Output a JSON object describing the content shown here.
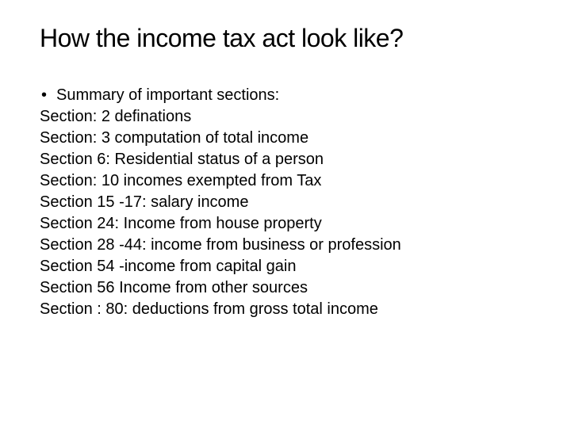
{
  "title": "How the income tax act look like?",
  "bullet": "•",
  "bullet_text": "Summary of important sections:",
  "sections": [
    "Section: 2 definations",
    "Section: 3 computation of total income",
    "Section 6: Residential status of a person",
    "Section: 10 incomes exempted from Tax",
    "Section 15 -17: salary income",
    "Section 24: Income from house property",
    "Section 28 -44: income from business or profession",
    "Section 54 -income from capital gain",
    "Section 56 Income from other sources",
    "Section : 80: deductions from gross total income"
  ],
  "colors": {
    "background": "#ffffff",
    "text": "#000000"
  },
  "typography": {
    "title_fontsize": 32,
    "body_fontsize": 20,
    "font_family": "Arial"
  }
}
